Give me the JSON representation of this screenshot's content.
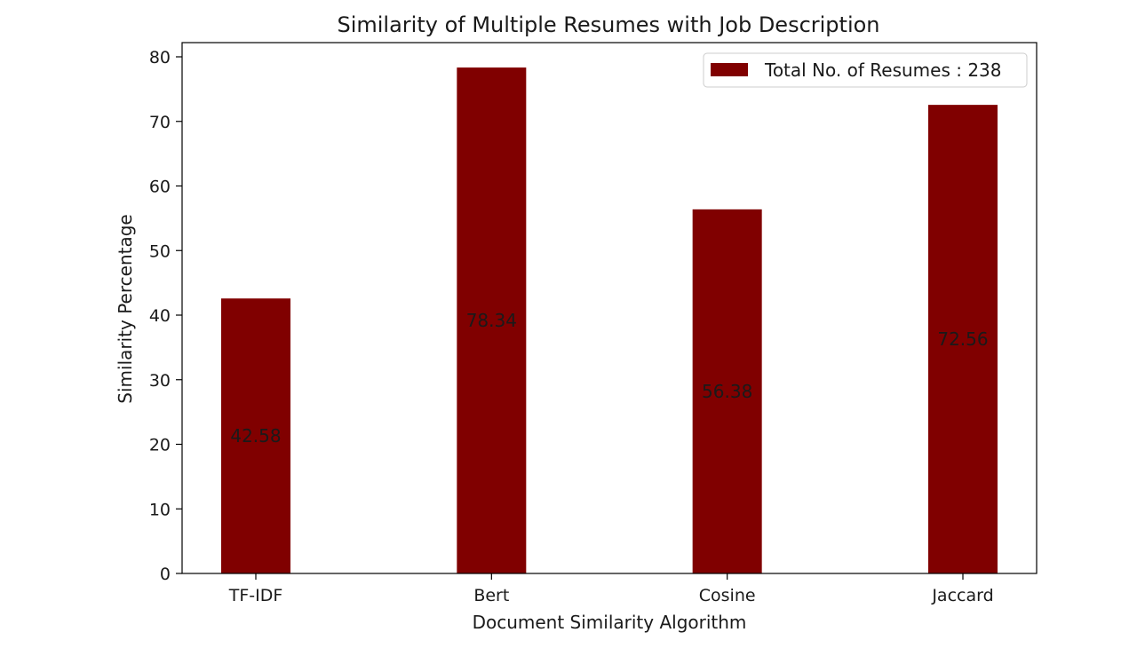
{
  "chart_data": {
    "type": "bar",
    "title": "Similarity of Multiple Resumes with Job Description",
    "xlabel": "Document Similarity Algorithm",
    "ylabel": "Similarity Percentage",
    "categories": [
      "TF-IDF",
      "Bert",
      "Cosine",
      "Jaccard"
    ],
    "series": [
      {
        "name": "Total No. of Resumes : 238",
        "values": [
          42.58,
          78.34,
          56.38,
          72.56
        ],
        "color": "#800000"
      }
    ],
    "data_labels": [
      "42.58",
      "78.34",
      "56.38",
      "72.56"
    ],
    "ylim": [
      0,
      80
    ],
    "yticks": [
      0,
      10,
      20,
      30,
      40,
      50,
      60,
      70,
      80
    ],
    "grid": false,
    "legend_position": "top-right"
  }
}
